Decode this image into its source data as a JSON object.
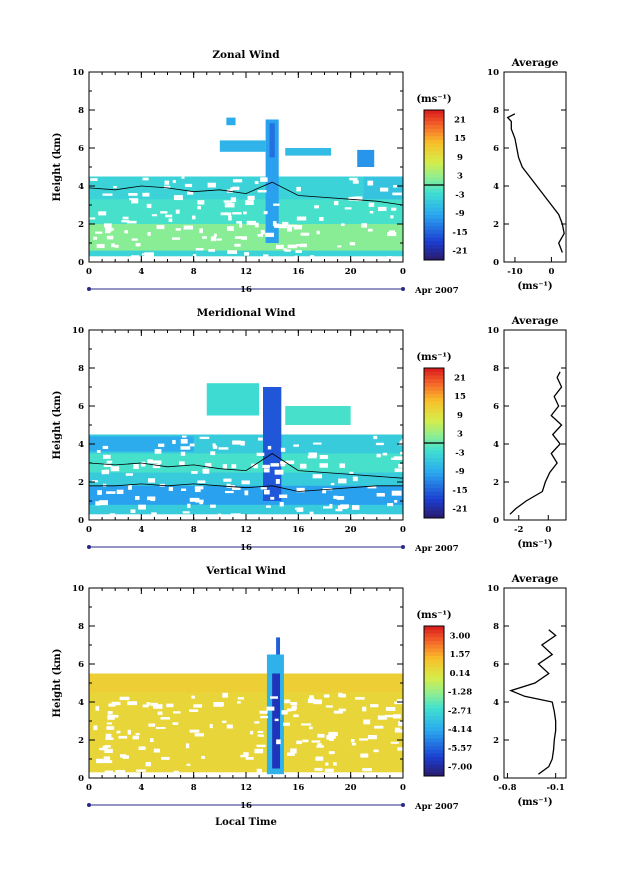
{
  "chart_data": [
    {
      "type": "heatmap",
      "title": "Zonal Wind",
      "ylabel": "Height (km)",
      "xlabel": "",
      "x_ticks": [
        "0",
        "4",
        "8",
        "12",
        "16",
        "20",
        "0"
      ],
      "y_ticks": [
        "0",
        "2",
        "4",
        "6",
        "8",
        "10"
      ],
      "xlim": [
        0,
        24
      ],
      "ylim": [
        0,
        10
      ],
      "date_marker": "16",
      "date_label": "Apr 2007",
      "colorbar": {
        "unit": "(ms⁻¹)",
        "ticks": [
          "21",
          "15",
          "9",
          "3",
          "-3",
          "-9",
          "-15",
          "-21"
        ],
        "range": [
          -24,
          24
        ]
      },
      "regions": [
        {
          "x0": 0,
          "x1": 24,
          "y0": 0.3,
          "y1": 4.5,
          "v": -4
        },
        {
          "x0": 0,
          "x1": 24,
          "y0": 0.6,
          "y1": 2.0,
          "v": 2
        },
        {
          "x0": 0,
          "x1": 24,
          "y0": 2.0,
          "y1": 3.3,
          "v": -2
        },
        {
          "x0": 21,
          "x1": 24,
          "y0": 3.3,
          "y1": 4.5,
          "v": -6
        },
        {
          "x0": 13.5,
          "x1": 14.5,
          "y0": 1.0,
          "y1": 7.5,
          "v": -10
        },
        {
          "x0": 13.8,
          "x1": 14.2,
          "y0": 5.5,
          "y1": 7.3,
          "v": -14
        },
        {
          "x0": 10,
          "x1": 13.5,
          "y0": 5.8,
          "y1": 6.4,
          "v": -8
        },
        {
          "x0": 15,
          "x1": 18.5,
          "y0": 5.6,
          "y1": 6.0,
          "v": -7
        },
        {
          "x0": 20.5,
          "x1": 21.8,
          "y0": 5.0,
          "y1": 5.9,
          "v": -11
        },
        {
          "x0": 10.5,
          "x1": 11.2,
          "y0": 7.2,
          "y1": 7.6,
          "v": -9
        }
      ],
      "contours": [
        {
          "x": [
            0,
            2,
            4,
            6,
            8,
            10,
            12,
            14,
            16,
            18,
            20,
            22,
            24
          ],
          "y": [
            3.9,
            3.8,
            4.0,
            3.9,
            3.7,
            3.8,
            3.6,
            4.2,
            3.5,
            3.4,
            3.3,
            3.2,
            3.0
          ]
        }
      ],
      "profile": {
        "title": "Average",
        "xlabel": "(ms⁻¹)",
        "x_ticks": [
          "-10",
          "0"
        ],
        "xlim": [
          -13,
          4
        ],
        "heights": [
          0.5,
          1,
          1.5,
          2,
          2.5,
          3,
          3.5,
          4,
          4.5,
          5,
          5.5,
          6,
          6.5,
          7,
          7.4,
          7.6,
          7.8
        ],
        "values": [
          3,
          2,
          3.5,
          3,
          2,
          0,
          -2,
          -4,
          -6,
          -8,
          -9,
          -9.5,
          -10,
          -11,
          -11,
          -12,
          -10
        ]
      }
    },
    {
      "type": "heatmap",
      "title": "Meridional Wind",
      "ylabel": "Height (km)",
      "xlabel": "",
      "x_ticks": [
        "0",
        "4",
        "8",
        "12",
        "16",
        "20",
        "0"
      ],
      "y_ticks": [
        "0",
        "2",
        "4",
        "6",
        "8",
        "10"
      ],
      "xlim": [
        0,
        24
      ],
      "ylim": [
        0,
        10
      ],
      "date_marker": "16",
      "date_label": "Apr 2007",
      "colorbar": {
        "unit": "(ms⁻¹)",
        "ticks": [
          "21",
          "15",
          "9",
          "3",
          "-3",
          "-9",
          "-15",
          "-21"
        ],
        "range": [
          -24,
          24
        ]
      },
      "regions": [
        {
          "x0": 0,
          "x1": 24,
          "y0": 0.3,
          "y1": 4.5,
          "v": -5
        },
        {
          "x0": 0,
          "x1": 24,
          "y0": 0.8,
          "y1": 1.8,
          "v": -10
        },
        {
          "x0": 0,
          "x1": 24,
          "y0": 2.5,
          "y1": 3.5,
          "v": -2
        },
        {
          "x0": 0,
          "x1": 8,
          "y0": 3.6,
          "y1": 4.4,
          "v": -9
        },
        {
          "x0": 13.3,
          "x1": 14.7,
          "y0": 1.0,
          "y1": 7.0,
          "v": -16
        },
        {
          "x0": 9,
          "x1": 13,
          "y0": 5.5,
          "y1": 7.2,
          "v": -3
        },
        {
          "x0": 15,
          "x1": 20,
          "y0": 5.0,
          "y1": 6.0,
          "v": -2
        }
      ],
      "contours": [
        {
          "x": [
            0,
            2,
            4,
            6,
            8,
            10,
            12,
            14,
            16,
            18,
            20,
            22,
            24
          ],
          "y": [
            3.0,
            2.9,
            3.0,
            2.8,
            2.9,
            2.7,
            2.6,
            3.5,
            2.6,
            2.5,
            2.4,
            2.3,
            2.2
          ]
        },
        {
          "x": [
            0,
            2,
            4,
            6,
            8,
            10,
            12,
            14,
            16,
            18,
            20,
            22,
            24
          ],
          "y": [
            1.8,
            1.8,
            1.9,
            1.8,
            1.9,
            1.8,
            1.7,
            1.8,
            1.5,
            1.6,
            1.7,
            1.8,
            1.8
          ]
        }
      ],
      "profile": {
        "title": "Average",
        "xlabel": "(ms⁻¹)",
        "x_ticks": [
          "-2",
          "0"
        ],
        "xlim": [
          -3,
          1.2
        ],
        "heights": [
          0.3,
          0.6,
          1,
          1.5,
          2,
          2.5,
          3,
          3.5,
          4,
          4.5,
          5,
          5.5,
          6,
          6.5,
          7,
          7.5,
          7.8
        ],
        "values": [
          -2.6,
          -2.2,
          -1.5,
          -0.4,
          -0.2,
          0.1,
          0.6,
          0.2,
          0.8,
          0.3,
          0.9,
          0.2,
          0.7,
          0.4,
          0.9,
          0.6,
          0.8
        ]
      }
    },
    {
      "type": "heatmap",
      "title": "Vertical Wind",
      "ylabel": "Height (km)",
      "xlabel": "Local Time",
      "x_ticks": [
        "0",
        "4",
        "8",
        "12",
        "16",
        "20",
        "0"
      ],
      "y_ticks": [
        "0",
        "2",
        "4",
        "6",
        "8",
        "10"
      ],
      "xlim": [
        0,
        24
      ],
      "ylim": [
        0,
        10
      ],
      "date_marker": "16",
      "date_label": "Apr 2007",
      "colorbar": {
        "unit": "(ms⁻¹)",
        "ticks": [
          "3.00",
          "1.57",
          "0.14",
          "-1.28",
          "-2.71",
          "-4.14",
          "-5.57",
          "-7.00"
        ],
        "range": [
          -7.9,
          3.9
        ]
      },
      "regions": [
        {
          "x0": 0,
          "x1": 24,
          "y0": 0.3,
          "y1": 4.5,
          "v": 0.6
        },
        {
          "x0": 0,
          "x1": 24,
          "y0": 4.5,
          "y1": 5.5,
          "v": 0.8
        },
        {
          "x0": 13.6,
          "x1": 14.9,
          "y0": 0.2,
          "y1": 6.5,
          "v": -4.0
        },
        {
          "x0": 14.0,
          "x1": 14.6,
          "y0": 0.5,
          "y1": 5.5,
          "v": -6.8
        },
        {
          "x0": 14.3,
          "x1": 14.6,
          "y0": 6.5,
          "y1": 7.4,
          "v": -5.8
        }
      ],
      "contours": [],
      "profile": {
        "title": "Average",
        "xlabel": "(ms⁻¹)",
        "x_ticks": [
          "-0.8",
          "-0.1"
        ],
        "xlim": [
          -0.85,
          0.05
        ],
        "heights": [
          0.2,
          0.6,
          1,
          1.5,
          2,
          2.5,
          3,
          3.5,
          4,
          4.3,
          4.6,
          5,
          5.5,
          6,
          6.5,
          7,
          7.5,
          7.8
        ],
        "values": [
          -0.35,
          -0.2,
          -0.15,
          -0.13,
          -0.12,
          -0.1,
          -0.1,
          -0.12,
          -0.15,
          -0.55,
          -0.75,
          -0.4,
          -0.2,
          -0.35,
          -0.15,
          -0.3,
          -0.1,
          -0.2
        ]
      }
    }
  ]
}
